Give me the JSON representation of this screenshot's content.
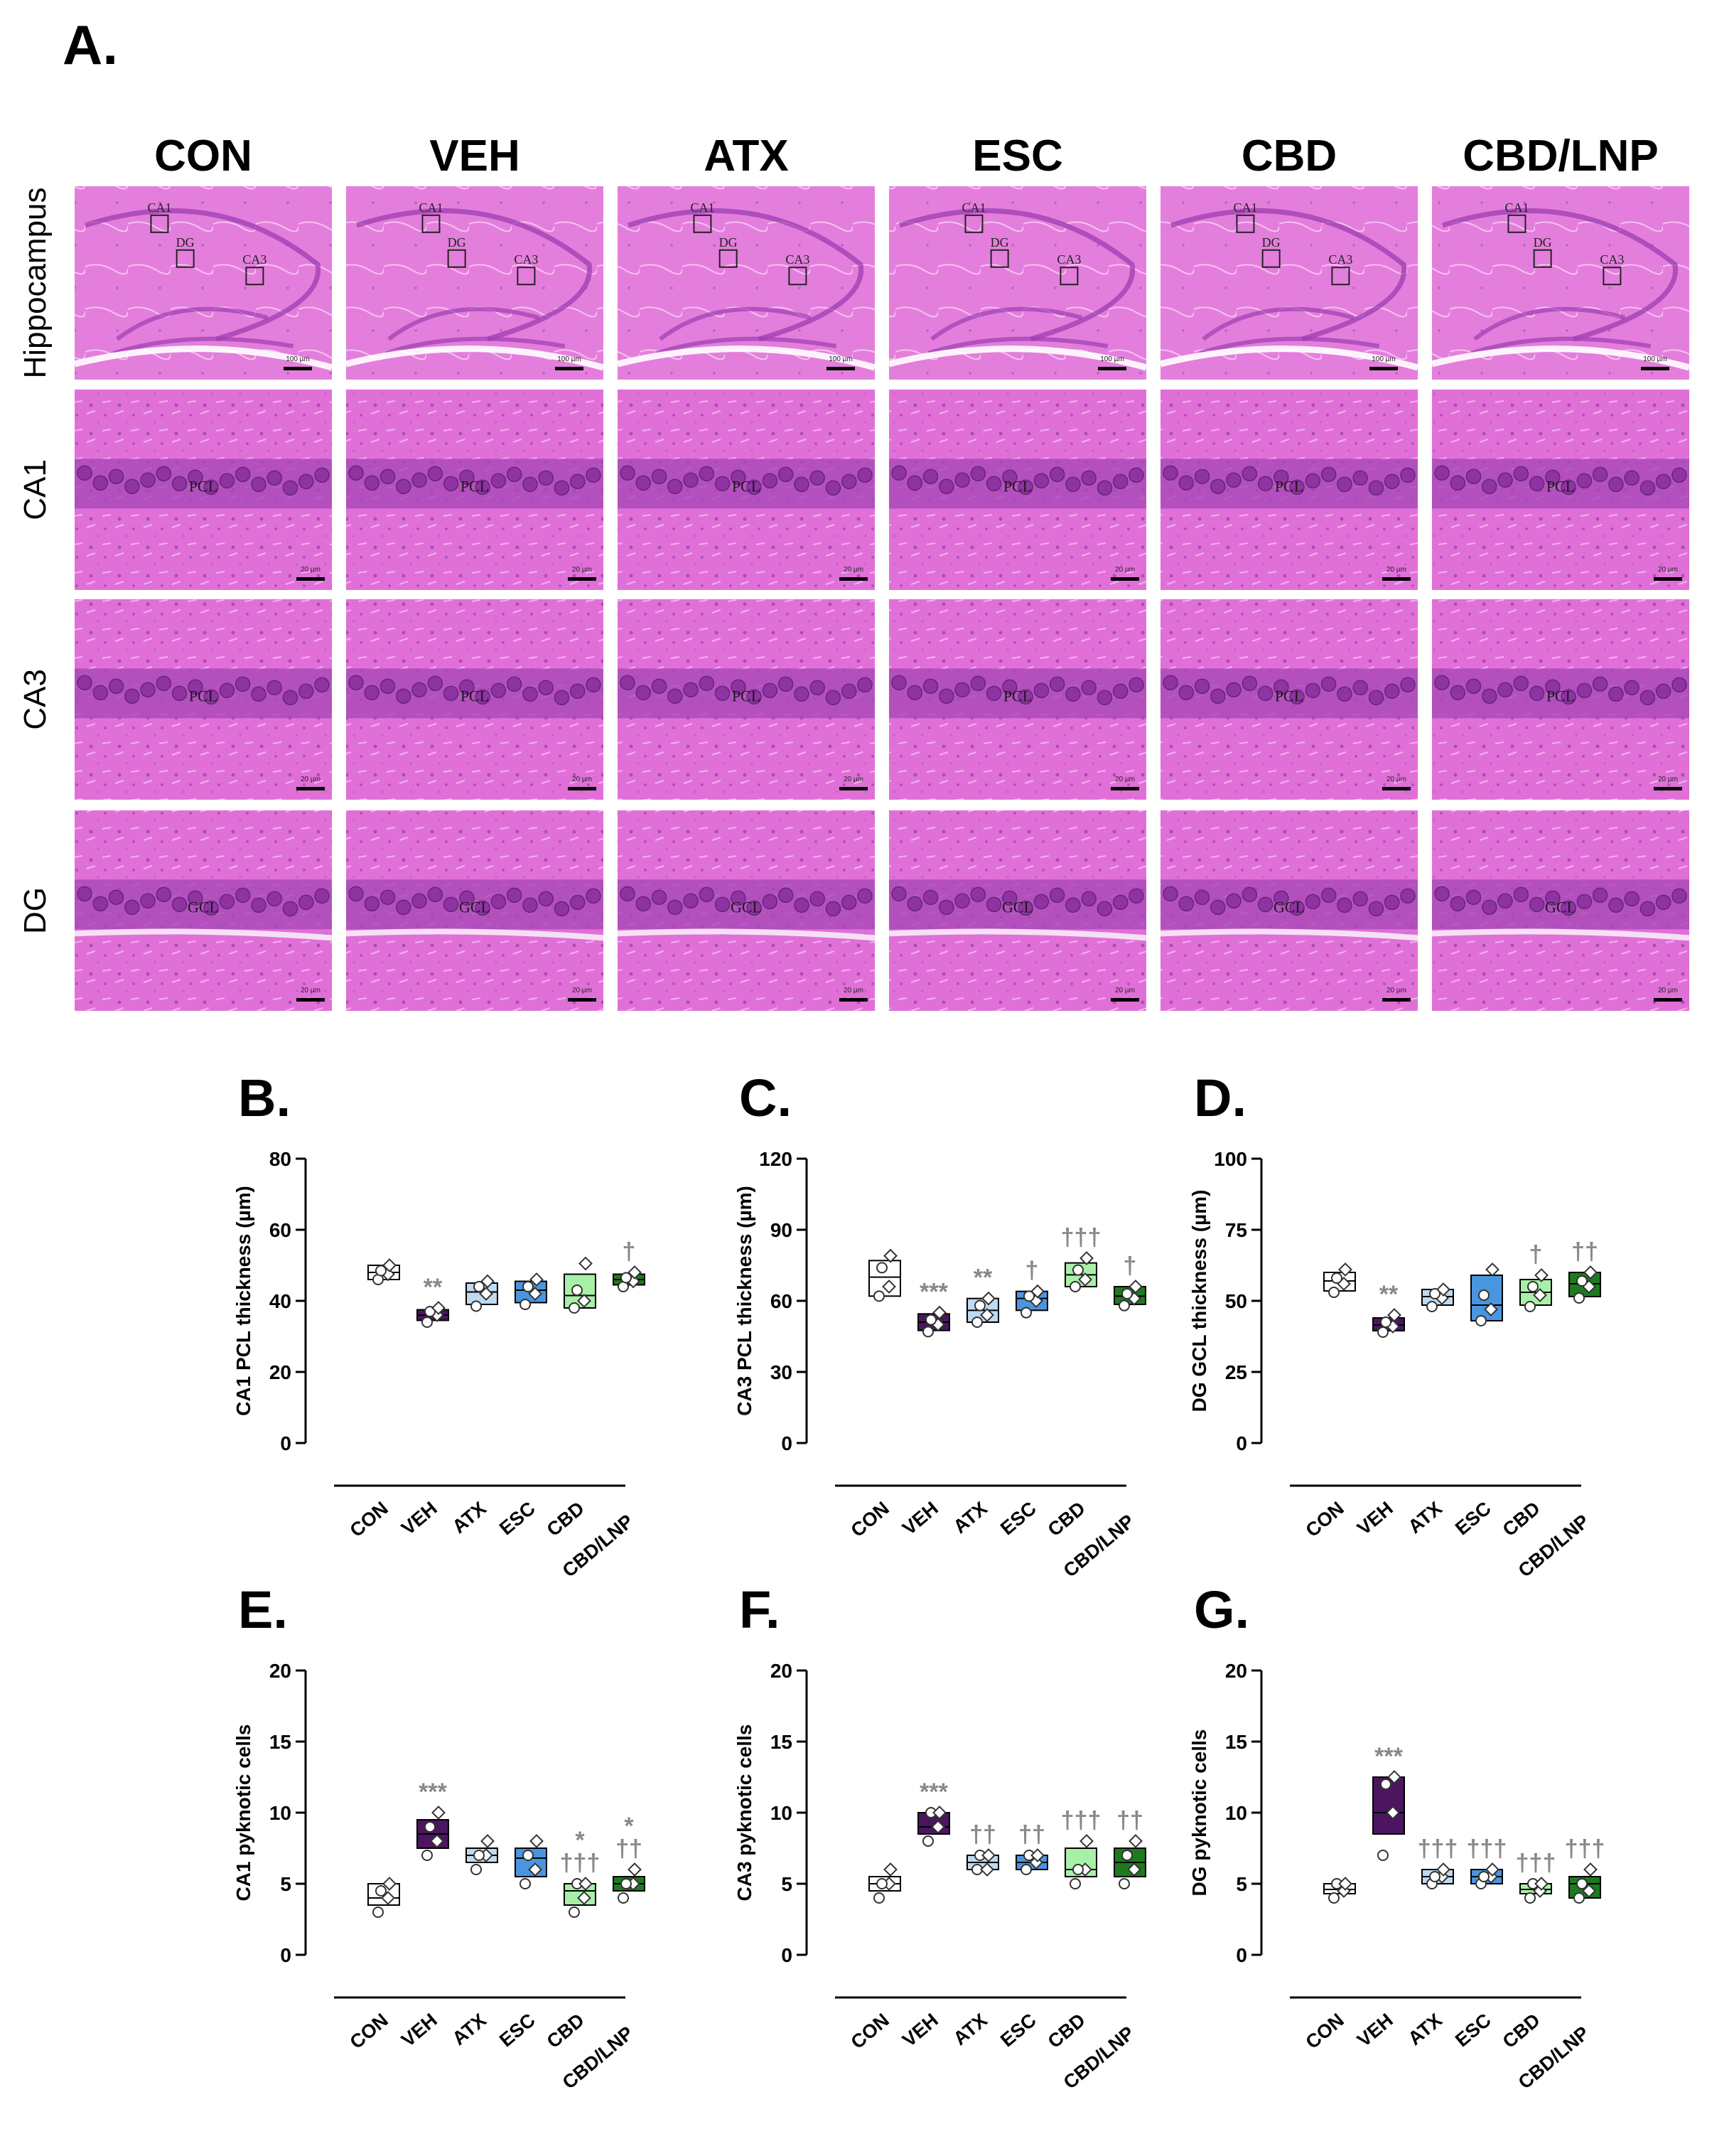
{
  "panel_a": {
    "letter": "A.",
    "columns": [
      "CON",
      "VEH",
      "ATX",
      "ESC",
      "CBD",
      "CBD/LNP"
    ],
    "rows": [
      "Hippocampus",
      "CA1",
      "CA3",
      "DG"
    ],
    "overview_box_labels": [
      "CA1",
      "DG",
      "CA3"
    ],
    "layer_labels": {
      "CA1": "PCL",
      "CA3": "PCL",
      "DG": "GCL"
    },
    "scale_bar_overview": "100 µm",
    "scale_bar_detail": "20 µm",
    "colors": {
      "stain_bg": "#E070D8",
      "stain_layer": "#A848B8",
      "stain_dark": "#8A2E9E",
      "cell_outline": "#5A1E6E"
    }
  },
  "group_colors": {
    "CON": "#FFFFFF",
    "VEH": "#4B1560",
    "ATX": "#BFD9F0",
    "ESC": "#4A95E0",
    "CBD": "#A8F0A8",
    "CBD/LNP": "#1E7A1E"
  },
  "chart_data": [
    {
      "panel": "B.",
      "type": "box",
      "ylabel": "CA1 PCL thickness (µm)",
      "categories": [
        "CON",
        "VEH",
        "ATX",
        "ESC",
        "CBD",
        "CBD/LNP"
      ],
      "ylim": [
        0,
        80
      ],
      "yticks": [
        0,
        20,
        40,
        60,
        80
      ],
      "boxes": [
        {
          "q1": 46,
          "median": 48,
          "q3": 50,
          "points": [
            46,
            47.5,
            48.5,
            50
          ]
        },
        {
          "q1": 34.5,
          "median": 36,
          "q3": 37.5,
          "points": [
            34,
            36,
            37,
            38
          ]
        },
        {
          "q1": 39,
          "median": 42.5,
          "q3": 45,
          "points": [
            38.5,
            42,
            44,
            45.5
          ]
        },
        {
          "q1": 39.5,
          "median": 43,
          "q3": 45.5,
          "points": [
            39,
            42,
            44,
            46
          ]
        },
        {
          "q1": 38,
          "median": 41.5,
          "q3": 47.5,
          "points": [
            38,
            40,
            43,
            50.5
          ]
        },
        {
          "q1": 44.5,
          "median": 46,
          "q3": 47.5,
          "points": [
            44,
            45.5,
            46.5,
            48
          ]
        }
      ],
      "annotations": [
        {
          "index": 1,
          "text": "**",
          "color": "#888888"
        },
        {
          "index": 5,
          "text": "†",
          "color": "#888888"
        }
      ]
    },
    {
      "panel": "C.",
      "type": "box",
      "ylabel": "CA3 PCL thickness (µm)",
      "categories": [
        "CON",
        "VEH",
        "ATX",
        "ESC",
        "CBD",
        "CBD/LNP"
      ],
      "ylim": [
        0,
        120
      ],
      "yticks": [
        0,
        30,
        60,
        90,
        120
      ],
      "boxes": [
        {
          "q1": 62,
          "median": 70,
          "q3": 77,
          "points": [
            62,
            66,
            74,
            79
          ]
        },
        {
          "q1": 47.5,
          "median": 51,
          "q3": 54.5,
          "points": [
            47,
            50,
            52,
            55
          ]
        },
        {
          "q1": 51,
          "median": 56,
          "q3": 61,
          "points": [
            51,
            54,
            58,
            61
          ]
        },
        {
          "q1": 56,
          "median": 61,
          "q3": 64,
          "points": [
            55,
            60,
            62,
            64
          ]
        },
        {
          "q1": 66,
          "median": 71,
          "q3": 76,
          "points": [
            66,
            69,
            73,
            78
          ]
        },
        {
          "q1": 58.5,
          "median": 62,
          "q3": 66,
          "points": [
            58,
            61,
            63,
            66
          ]
        }
      ],
      "annotations": [
        {
          "index": 1,
          "text": "***",
          "color": "#888888"
        },
        {
          "index": 2,
          "text": "**",
          "color": "#888888"
        },
        {
          "index": 3,
          "text": "†",
          "color": "#888888"
        },
        {
          "index": 4,
          "text": "†††",
          "color": "#888888"
        },
        {
          "index": 5,
          "text": "†",
          "color": "#888888"
        }
      ]
    },
    {
      "panel": "D.",
      "type": "box",
      "ylabel": "DG GCL thickness (µm)",
      "categories": [
        "CON",
        "VEH",
        "ATX",
        "ESC",
        "CBD",
        "CBD/LNP"
      ],
      "ylim": [
        0,
        100
      ],
      "yticks": [
        0,
        25,
        50,
        75,
        100
      ],
      "boxes": [
        {
          "q1": 53.5,
          "median": 57,
          "q3": 60,
          "points": [
            53,
            56,
            58,
            61
          ]
        },
        {
          "q1": 39.5,
          "median": 41.5,
          "q3": 44,
          "points": [
            39,
            41,
            42.5,
            45
          ]
        },
        {
          "q1": 48.5,
          "median": 51.5,
          "q3": 54,
          "points": [
            48,
            51,
            52.5,
            54
          ]
        },
        {
          "q1": 43,
          "median": 48.5,
          "q3": 59,
          "points": [
            43,
            47,
            52,
            61
          ]
        },
        {
          "q1": 48.5,
          "median": 53,
          "q3": 57.5,
          "points": [
            48,
            52,
            55,
            59
          ]
        },
        {
          "q1": 51.5,
          "median": 56,
          "q3": 60,
          "points": [
            51,
            55,
            57,
            60
          ]
        }
      ],
      "annotations": [
        {
          "index": 1,
          "text": "**",
          "color": "#888888"
        },
        {
          "index": 4,
          "text": "†",
          "color": "#888888"
        },
        {
          "index": 5,
          "text": "††",
          "color": "#888888"
        }
      ]
    },
    {
      "panel": "E.",
      "type": "box",
      "ylabel": "CA1 pyknotic cells",
      "categories": [
        "CON",
        "VEH",
        "ATX",
        "ESC",
        "CBD",
        "CBD/LNP"
      ],
      "ylim": [
        0,
        20
      ],
      "yticks": [
        0,
        5,
        10,
        15,
        20
      ],
      "boxes": [
        {
          "q1": 3.5,
          "median": 4,
          "q3": 5,
          "points": [
            3,
            4,
            4.5,
            5
          ]
        },
        {
          "q1": 7.5,
          "median": 8.5,
          "q3": 9.5,
          "points": [
            7,
            8,
            9,
            10
          ]
        },
        {
          "q1": 6.5,
          "median": 7,
          "q3": 7.5,
          "points": [
            6,
            7,
            7,
            8
          ]
        },
        {
          "q1": 5.5,
          "median": 6.8,
          "q3": 7.5,
          "points": [
            5,
            6,
            7,
            8
          ]
        },
        {
          "q1": 3.5,
          "median": 4.5,
          "q3": 5,
          "points": [
            3,
            4,
            5,
            5
          ]
        },
        {
          "q1": 4.5,
          "median": 5,
          "q3": 5.5,
          "points": [
            4,
            5,
            5,
            6
          ]
        }
      ],
      "annotations": [
        {
          "index": 1,
          "text": "***",
          "color": "#888888"
        },
        {
          "index": 4,
          "text": "†††",
          "color": "#888888"
        },
        {
          "index": 4,
          "text": "*",
          "color": "#888888"
        },
        {
          "index": 5,
          "text": "††",
          "color": "#888888"
        },
        {
          "index": 5,
          "text": "*",
          "color": "#888888"
        }
      ]
    },
    {
      "panel": "F.",
      "type": "box",
      "ylabel": "CA3 pyknotic cells",
      "categories": [
        "CON",
        "VEH",
        "ATX",
        "ESC",
        "CBD",
        "CBD/LNP"
      ],
      "ylim": [
        0,
        20
      ],
      "yticks": [
        0,
        5,
        10,
        15,
        20
      ],
      "boxes": [
        {
          "q1": 4.5,
          "median": 5,
          "q3": 5.5,
          "points": [
            4,
            5,
            5,
            6
          ]
        },
        {
          "q1": 8.5,
          "median": 9,
          "q3": 10,
          "points": [
            8,
            9,
            10,
            10
          ]
        },
        {
          "q1": 6,
          "median": 6.5,
          "q3": 7,
          "points": [
            6,
            6,
            7,
            7
          ]
        },
        {
          "q1": 6,
          "median": 6.5,
          "q3": 7,
          "points": [
            6,
            6.5,
            7,
            7
          ]
        },
        {
          "q1": 5.5,
          "median": 6,
          "q3": 7.5,
          "points": [
            5,
            6,
            6,
            8
          ]
        },
        {
          "q1": 5.5,
          "median": 6.5,
          "q3": 7.5,
          "points": [
            5,
            6,
            7,
            8
          ]
        }
      ],
      "annotations": [
        {
          "index": 1,
          "text": "***",
          "color": "#888888"
        },
        {
          "index": 2,
          "text": "††",
          "color": "#888888"
        },
        {
          "index": 3,
          "text": "††",
          "color": "#888888"
        },
        {
          "index": 4,
          "text": "†††",
          "color": "#888888"
        },
        {
          "index": 5,
          "text": "††",
          "color": "#888888"
        }
      ]
    },
    {
      "panel": "G.",
      "type": "box",
      "ylabel": "DG pyknotic cells",
      "categories": [
        "CON",
        "VEH",
        "ATX",
        "ESC",
        "CBD",
        "CBD/LNP"
      ],
      "ylim": [
        0,
        20
      ],
      "yticks": [
        0,
        5,
        10,
        15,
        20
      ],
      "boxes": [
        {
          "q1": 4.3,
          "median": 4.6,
          "q3": 5,
          "points": [
            4,
            4.5,
            5,
            5
          ]
        },
        {
          "q1": 8.5,
          "median": 10,
          "q3": 12.5,
          "points": [
            7,
            10,
            12,
            12.5
          ]
        },
        {
          "q1": 5,
          "median": 5.5,
          "q3": 6,
          "points": [
            5,
            5.5,
            5.5,
            6
          ]
        },
        {
          "q1": 5,
          "median": 5.5,
          "q3": 6,
          "points": [
            5,
            5.5,
            5.5,
            6
          ]
        },
        {
          "q1": 4.3,
          "median": 4.6,
          "q3": 5,
          "points": [
            4,
            4.5,
            5,
            5
          ]
        },
        {
          "q1": 4,
          "median": 5,
          "q3": 5.5,
          "points": [
            4,
            4.5,
            5,
            6
          ]
        }
      ],
      "annotations": [
        {
          "index": 1,
          "text": "***",
          "color": "#888888"
        },
        {
          "index": 2,
          "text": "†††",
          "color": "#888888"
        },
        {
          "index": 3,
          "text": "†††",
          "color": "#888888"
        },
        {
          "index": 4,
          "text": "†††",
          "color": "#888888"
        },
        {
          "index": 5,
          "text": "†††",
          "color": "#888888"
        }
      ]
    }
  ]
}
